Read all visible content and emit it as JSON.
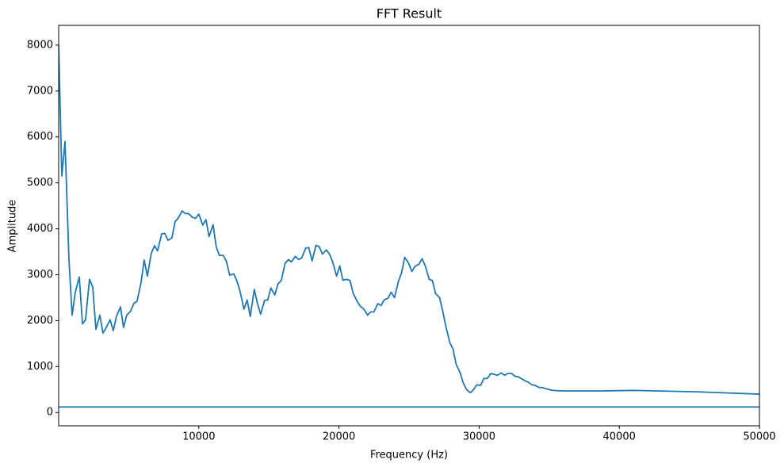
{
  "chart_data": {
    "type": "line",
    "title": "FFT Result",
    "x_label": "Frequency (Hz)",
    "y_label": "Amplitude",
    "xlim": [
      0,
      50000
    ],
    "ylim": [
      -290,
      8430
    ],
    "xticks": [
      10000,
      20000,
      30000,
      40000,
      50000
    ],
    "yticks": [
      0,
      1000,
      2000,
      3000,
      4000,
      5000,
      6000,
      7000,
      8000
    ],
    "grid": false,
    "series": [
      {
        "color": "#1f77b4",
        "x": [
          0,
          226,
          452,
          735,
          960,
          1190,
          1470,
          1700,
          1920,
          2200,
          2430,
          2660,
          2940,
          3160,
          3390,
          3670,
          3900,
          4120,
          4410,
          4630,
          4860,
          5140,
          5370,
          5590,
          5880,
          6100,
          6330,
          6610,
          6840,
          7060,
          7350,
          7570,
          7800,
          8080,
          8310,
          8530,
          8810,
          9040,
          9270,
          9550,
          9770,
          10000,
          10280,
          10510,
          10730,
          11020,
          11240,
          11470,
          11750,
          11980,
          12200,
          12490,
          12710,
          12940,
          13220,
          13450,
          13670,
          13960,
          14180,
          14410,
          14690,
          14920,
          15140,
          15420,
          15650,
          15880,
          16160,
          16390,
          16610,
          16890,
          17120,
          17350,
          17630,
          17850,
          18080,
          18360,
          18590,
          18820,
          19100,
          19320,
          19550,
          19830,
          20060,
          20280,
          20570,
          20790,
          21020,
          21300,
          21530,
          21750,
          22040,
          22260,
          22490,
          22770,
          23000,
          23220,
          23500,
          23730,
          23960,
          24240,
          24460,
          24690,
          24970,
          25200,
          25420,
          25710,
          25930,
          26160,
          26440,
          26670,
          26890,
          27180,
          27400,
          27630,
          27910,
          28140,
          28360,
          28650,
          28870,
          29100,
          29380,
          29610,
          29830,
          30110,
          30340,
          30570,
          30850,
          31080,
          31300,
          31580,
          31810,
          32040,
          32320,
          32540,
          32770,
          33050,
          33280,
          33500,
          33790,
          34010,
          34240,
          34520,
          34750,
          34970,
          35260,
          35930,
          37060,
          38760,
          41020,
          45540,
          50000
        ],
        "values": [
          8000,
          5150,
          5900,
          3330,
          2120,
          2620,
          2950,
          1930,
          2020,
          2900,
          2730,
          1810,
          2120,
          1730,
          1850,
          2020,
          1780,
          2090,
          2300,
          1850,
          2120,
          2210,
          2380,
          2420,
          2830,
          3320,
          2970,
          3470,
          3630,
          3520,
          3890,
          3900,
          3750,
          3800,
          4160,
          4230,
          4390,
          4330,
          4330,
          4250,
          4230,
          4320,
          4080,
          4200,
          3830,
          4090,
          3610,
          3420,
          3420,
          3280,
          2990,
          3020,
          2870,
          2640,
          2250,
          2450,
          2090,
          2680,
          2380,
          2140,
          2440,
          2450,
          2710,
          2560,
          2800,
          2870,
          3250,
          3330,
          3280,
          3400,
          3330,
          3370,
          3580,
          3590,
          3300,
          3640,
          3610,
          3450,
          3540,
          3450,
          3280,
          2970,
          3190,
          2880,
          2900,
          2870,
          2590,
          2420,
          2310,
          2260,
          2120,
          2190,
          2190,
          2370,
          2330,
          2450,
          2490,
          2620,
          2500,
          2850,
          3040,
          3380,
          3250,
          3070,
          3180,
          3230,
          3350,
          3190,
          2900,
          2870,
          2590,
          2500,
          2210,
          1870,
          1520,
          1380,
          1050,
          860,
          640,
          500,
          430,
          500,
          600,
          590,
          740,
          740,
          850,
          830,
          810,
          860,
          810,
          850,
          850,
          790,
          780,
          730,
          690,
          660,
          600,
          590,
          550,
          540,
          520,
          500,
          480,
          470,
          470,
          470,
          480,
          450,
          400
        ]
      },
      {
        "color": "#1f77b4",
        "x": [
          0,
          50000
        ],
        "values": [
          120,
          120
        ]
      }
    ]
  }
}
